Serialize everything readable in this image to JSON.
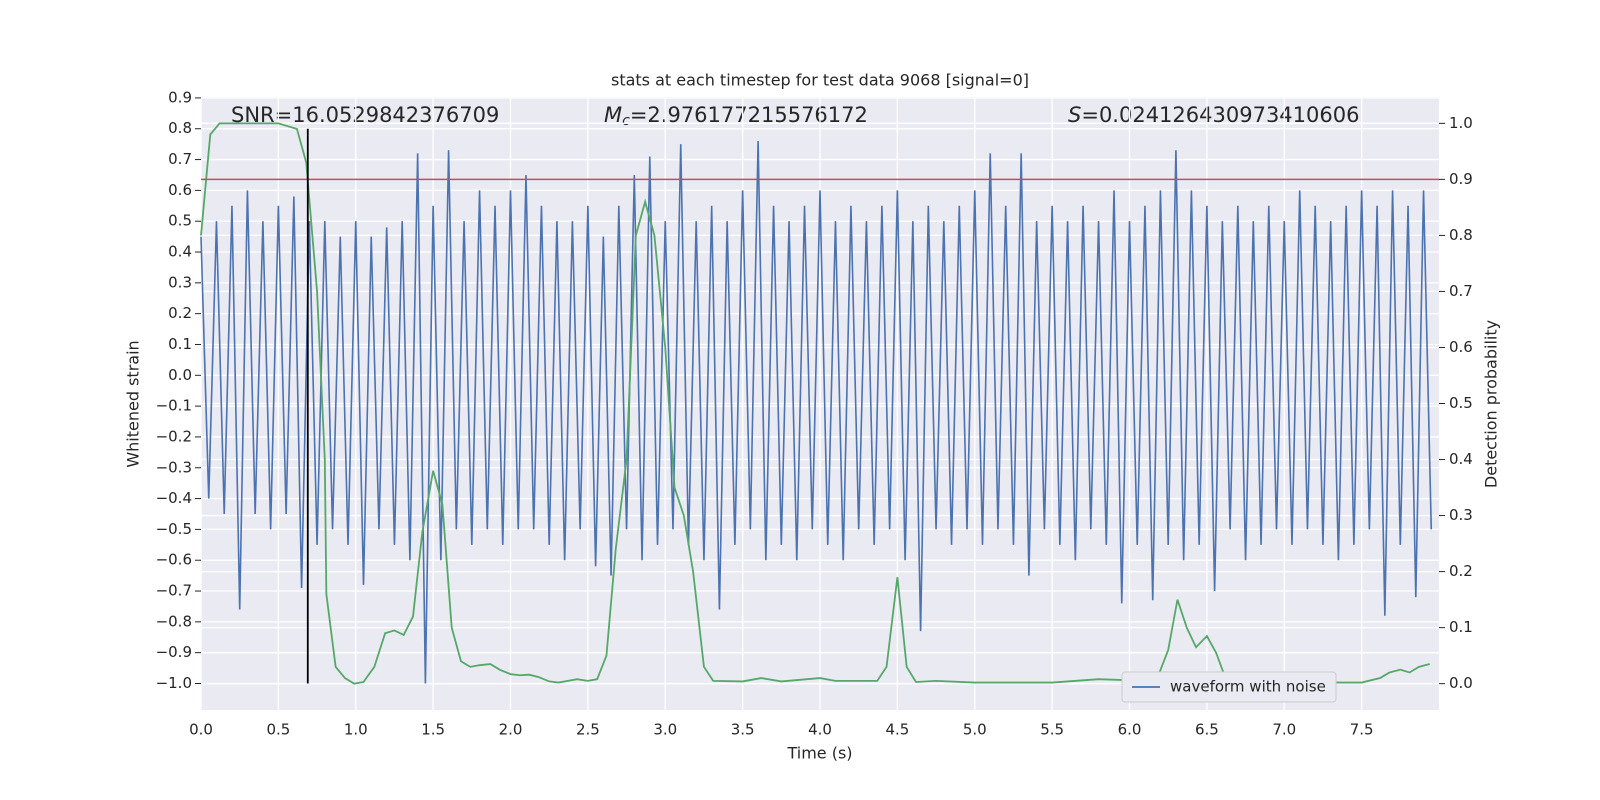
{
  "chart_data": {
    "type": "line",
    "title": "stats at each timestep for test data 9068 [signal=0]",
    "xlabel": "Time (s)",
    "ylabel": "Whitened strain",
    "y2label": "Detection probability",
    "xlim": [
      0,
      8
    ],
    "ylim": [
      -1.086,
      0.903
    ],
    "y2lim": [
      -0.047,
      1.047
    ],
    "xticks": [
      {
        "value": 0,
        "label": "0.0"
      },
      0.5,
      {
        "value": 1,
        "label": "1.0"
      },
      1.5,
      {
        "value": 2,
        "label": "2.0"
      },
      2.5,
      {
        "value": 3,
        "label": "3.0"
      },
      3.5,
      {
        "value": 4,
        "label": "4.0"
      },
      4.5,
      {
        "value": 5,
        "label": "5.0"
      },
      5.5,
      {
        "value": 6,
        "label": "6.0"
      },
      6.5,
      {
        "value": 7,
        "label": "7.0"
      },
      7.5
    ],
    "yticks": [
      {
        "value": -1,
        "label": "−1.0"
      },
      {
        "value": -0.9,
        "label": "−0.9"
      },
      {
        "value": -0.8,
        "label": "−0.8"
      },
      {
        "value": -0.7,
        "label": "−0.7"
      },
      {
        "value": -0.6,
        "label": "−0.6"
      },
      {
        "value": -0.5,
        "label": "−0.5"
      },
      {
        "value": -0.4,
        "label": "−0.4"
      },
      {
        "value": -0.3,
        "label": "−0.3"
      },
      {
        "value": -0.2,
        "label": "−0.2"
      },
      {
        "value": -0.1,
        "label": "−0.1"
      },
      {
        "value": 0,
        "label": "0.0"
      },
      0.1,
      0.2,
      0.3,
      0.4,
      0.5,
      0.6,
      0.7,
      0.8,
      0.9
    ],
    "y2ticks": [
      {
        "value": 0,
        "label": "0.0"
      },
      0.1,
      0.2,
      0.3,
      0.4,
      0.5,
      0.6,
      0.7,
      0.8,
      0.9,
      {
        "value": 1,
        "label": "1.0"
      }
    ],
    "grid": true,
    "legend": "lower right",
    "annotations": [
      {
        "text": "SNR=16.0529842376709"
      },
      {
        "symbol": "M",
        "subscript": "c",
        "text": "=2.976177215576172"
      },
      {
        "symbol": "S",
        "text": "=0.024126430973410606"
      }
    ],
    "threshold": {
      "value": 0.9,
      "axis": "y2",
      "color": "#c44e52"
    },
    "marker_line": {
      "x": 0.69,
      "y": [
        -1.0,
        0.8
      ],
      "color": "#000000"
    },
    "series": [
      {
        "name": "waveform with noise",
        "color": "#4c72b0",
        "x": [
          0,
          0.05,
          0.1,
          0.15,
          0.2,
          0.25,
          0.3,
          0.35,
          0.4,
          0.45,
          0.5,
          0.55,
          0.6,
          0.65,
          0.7,
          0.75,
          0.8,
          0.85,
          0.9,
          0.95,
          1,
          1.05,
          1.1,
          1.15,
          1.2,
          1.25,
          1.3,
          1.35,
          1.4,
          1.45,
          1.5,
          1.55,
          1.6,
          1.65,
          1.7,
          1.75,
          1.8,
          1.85,
          1.9,
          1.95,
          2,
          2.05,
          2.1,
          2.15,
          2.2,
          2.25,
          2.3,
          2.35,
          2.4,
          2.45,
          2.5,
          2.55,
          2.6,
          2.65,
          2.7,
          2.75,
          2.8,
          2.85,
          2.9,
          2.95,
          3,
          3.05,
          3.1,
          3.15,
          3.2,
          3.25,
          3.3,
          3.35,
          3.4,
          3.45,
          3.5,
          3.55,
          3.6,
          3.65,
          3.7,
          3.75,
          3.8,
          3.85,
          3.9,
          3.95,
          4,
          4.05,
          4.1,
          4.15,
          4.2,
          4.25,
          4.3,
          4.35,
          4.4,
          4.45,
          4.5,
          4.55,
          4.6,
          4.65,
          4.7,
          4.75,
          4.8,
          4.85,
          4.9,
          4.95,
          5,
          5.05,
          5.1,
          5.15,
          5.2,
          5.25,
          5.3,
          5.35,
          5.4,
          5.45,
          5.5,
          5.55,
          5.6,
          5.65,
          5.7,
          5.75,
          5.8,
          5.85,
          5.9,
          5.95,
          6,
          6.05,
          6.1,
          6.15,
          6.2,
          6.25,
          6.3,
          6.35,
          6.4,
          6.45,
          6.5,
          6.55,
          6.6,
          6.65,
          6.7,
          6.75,
          6.8,
          6.85,
          6.9,
          6.95,
          7,
          7.05,
          7.1,
          7.15,
          7.2,
          7.25,
          7.3,
          7.35,
          7.4,
          7.45,
          7.5,
          7.55,
          7.6,
          7.65,
          7.7,
          7.75,
          7.8,
          7.85,
          7.9,
          7.95
        ],
        "values": [
          0.45,
          -0.4,
          0.5,
          -0.45,
          0.55,
          -0.76,
          0.6,
          -0.45,
          0.5,
          -0.5,
          0.55,
          -0.45,
          0.58,
          -0.69,
          0.5,
          -0.55,
          0.5,
          -0.5,
          0.45,
          -0.55,
          0.5,
          -0.68,
          0.45,
          -0.5,
          0.48,
          -0.55,
          0.5,
          -0.6,
          0.72,
          -1.0,
          0.55,
          -0.6,
          0.73,
          -0.5,
          0.5,
          -0.55,
          0.6,
          -0.5,
          0.55,
          -0.55,
          0.6,
          -0.5,
          0.65,
          -0.5,
          0.55,
          -0.55,
          0.5,
          -0.6,
          0.5,
          -0.5,
          0.55,
          -0.62,
          0.45,
          -0.65,
          0.55,
          -0.5,
          0.65,
          -0.6,
          0.71,
          -0.55,
          0.5,
          -0.5,
          0.75,
          -0.55,
          0.5,
          -0.6,
          0.55,
          -0.76,
          0.5,
          -0.55,
          0.6,
          -0.5,
          0.76,
          -0.6,
          0.55,
          -0.55,
          0.5,
          -0.6,
          0.55,
          -0.5,
          0.6,
          -0.55,
          0.5,
          -0.6,
          0.55,
          -0.5,
          0.5,
          -0.55,
          0.55,
          -0.5,
          0.6,
          -0.6,
          0.5,
          -0.83,
          0.55,
          -0.5,
          0.5,
          -0.55,
          0.55,
          -0.5,
          0.6,
          -0.55,
          0.72,
          -0.5,
          0.55,
          -0.55,
          0.72,
          -0.65,
          0.5,
          -0.5,
          0.55,
          -0.55,
          0.5,
          -0.6,
          0.55,
          -0.5,
          0.5,
          -0.55,
          0.6,
          -0.74,
          0.5,
          -0.55,
          0.55,
          -0.73,
          0.6,
          -0.55,
          0.73,
          -0.6,
          0.6,
          -0.55,
          0.55,
          -0.7,
          0.5,
          -0.5,
          0.55,
          -0.6,
          0.5,
          -0.55,
          0.55,
          -0.5,
          0.5,
          -0.55,
          0.6,
          -0.5,
          0.55,
          -0.55,
          0.5,
          -0.6,
          0.55,
          -0.55,
          0.6,
          -0.5,
          0.55,
          -0.78,
          0.6,
          -0.55,
          0.55,
          -0.72,
          0.6,
          -0.5
        ]
      },
      {
        "name": "detection probability",
        "color": "#55a868",
        "axis": "y2",
        "x": [
          0,
          0.06,
          0.12,
          0.3,
          0.5,
          0.62,
          0.68,
          0.75,
          0.8,
          0.81,
          0.87,
          0.93,
          0.99,
          1.05,
          1.12,
          1.19,
          1.25,
          1.31,
          1.37,
          1.43,
          1.5,
          1.56,
          1.62,
          1.68,
          1.74,
          1.8,
          1.87,
          1.93,
          2,
          2.06,
          2.12,
          2.18,
          2.25,
          2.31,
          2.37,
          2.43,
          2.5,
          2.56,
          2.62,
          2.68,
          2.75,
          2.81,
          2.87,
          2.93,
          3,
          3.06,
          3.12,
          3.18,
          3.25,
          3.31,
          3.5,
          3.62,
          3.75,
          4,
          4.1,
          4.37,
          4.43,
          4.5,
          4.56,
          4.62,
          4.75,
          5,
          5.2,
          5.5,
          5.8,
          6.12,
          6.18,
          6.25,
          6.31,
          6.37,
          6.43,
          6.5,
          6.56,
          6.62,
          6.8,
          7.2,
          7.5,
          7.62,
          7.68,
          7.75,
          7.81,
          7.87,
          7.94
        ],
        "values": [
          0.8,
          0.98,
          1.0,
          1.0,
          1.0,
          0.99,
          0.93,
          0.7,
          0.4,
          0.16,
          0.03,
          0.01,
          0.0,
          0.003,
          0.03,
          0.09,
          0.095,
          0.087,
          0.12,
          0.27,
          0.38,
          0.32,
          0.1,
          0.04,
          0.03,
          0.033,
          0.035,
          0.025,
          0.017,
          0.015,
          0.016,
          0.012,
          0.004,
          0.002,
          0.005,
          0.008,
          0.005,
          0.008,
          0.05,
          0.24,
          0.4,
          0.8,
          0.86,
          0.8,
          0.6,
          0.35,
          0.3,
          0.2,
          0.03,
          0.005,
          0.004,
          0.01,
          0.004,
          0.01,
          0.005,
          0.005,
          0.03,
          0.19,
          0.03,
          0.003,
          0.005,
          0.002,
          0.002,
          0.002,
          0.008,
          0.005,
          0.01,
          0.06,
          0.15,
          0.1,
          0.065,
          0.085,
          0.055,
          0.01,
          0.003,
          0.002,
          0.002,
          0.01,
          0.02,
          0.025,
          0.02,
          0.03,
          0.035
        ]
      }
    ]
  }
}
